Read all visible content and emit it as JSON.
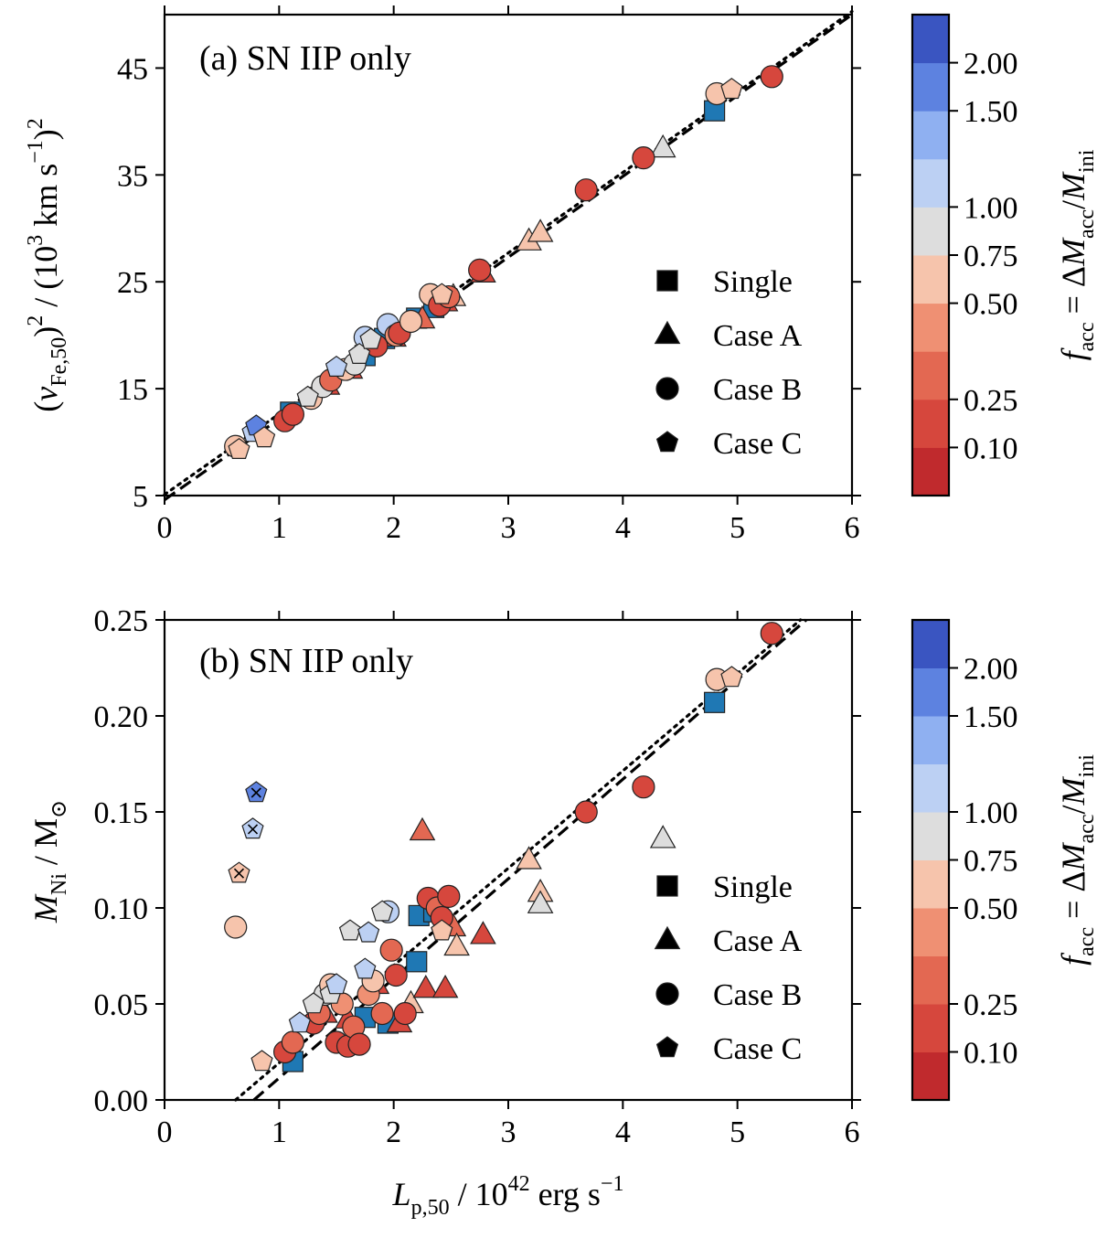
{
  "colors": {
    "single": "#1f78b4",
    "cmap_bins": [
      "#c02a2d",
      "#d6473d",
      "#e36852",
      "#ef9073",
      "#f6c4ac",
      "#dddddd",
      "#bcd0f3",
      "#8fb0f1",
      "#5d82e0",
      "#3a55c1"
    ]
  },
  "chart_data": [
    {
      "type": "scatter",
      "panel": "a",
      "title": "(a) SN IIP only",
      "xlabel": "L_p,50 / 10^42 erg s^-1",
      "ylabel": "(v_Fe,50)^2 / (10^3 km s^-1)^2",
      "xlim": [
        0,
        6
      ],
      "ylim": [
        5,
        50
      ],
      "xticks": [
        0,
        1,
        2,
        3,
        4,
        5,
        6
      ],
      "yticks": [
        5,
        15,
        25,
        35,
        45
      ],
      "fits": [
        {
          "style": "dashed",
          "x": [
            0,
            6
          ],
          "y": [
            4.6,
            50
          ]
        },
        {
          "style": "dotted",
          "x": [
            0,
            6
          ],
          "y": [
            5.1,
            50.3
          ]
        }
      ],
      "series": [
        {
          "name": "Single",
          "marker": "square",
          "points": [
            {
              "x": 1.1,
              "y": 12.8,
              "f": 0
            },
            {
              "x": 1.75,
              "y": 18.1,
              "f": 0
            },
            {
              "x": 1.92,
              "y": 19.7,
              "f": 0
            },
            {
              "x": 2.2,
              "y": 21.6,
              "f": 0
            },
            {
              "x": 2.35,
              "y": 22.6,
              "f": 0
            },
            {
              "x": 4.8,
              "y": 41.0,
              "f": 0
            }
          ]
        },
        {
          "name": "Case A",
          "marker": "triangle",
          "points": [
            {
              "x": 1.42,
              "y": 15.3,
              "f": 0.15
            },
            {
              "x": 1.62,
              "y": 16.8,
              "f": 0.2
            },
            {
              "x": 2.0,
              "y": 19.8,
              "f": 0.2
            },
            {
              "x": 2.25,
              "y": 21.5,
              "f": 0.3
            },
            {
              "x": 2.45,
              "y": 23.1,
              "f": 0.2
            },
            {
              "x": 2.52,
              "y": 23.6,
              "f": 0.6
            },
            {
              "x": 2.78,
              "y": 25.8,
              "f": 0.2
            },
            {
              "x": 3.18,
              "y": 28.8,
              "f": 0.6
            },
            {
              "x": 3.28,
              "y": 29.6,
              "f": 0.55
            },
            {
              "x": 4.35,
              "y": 37.5,
              "f": 0.8
            }
          ]
        },
        {
          "name": "Case B",
          "marker": "circle",
          "points": [
            {
              "x": 0.62,
              "y": 9.6,
              "f": 0.55
            },
            {
              "x": 1.05,
              "y": 12.0,
              "f": 0.2
            },
            {
              "x": 1.12,
              "y": 12.6,
              "f": 0.2
            },
            {
              "x": 1.28,
              "y": 14.1,
              "f": 0.7
            },
            {
              "x": 1.38,
              "y": 15.2,
              "f": 0.8
            },
            {
              "x": 1.45,
              "y": 15.8,
              "f": 0.3
            },
            {
              "x": 1.58,
              "y": 16.8,
              "f": 0.6
            },
            {
              "x": 1.66,
              "y": 17.3,
              "f": 0.9
            },
            {
              "x": 1.75,
              "y": 19.8,
              "f": 1.0
            },
            {
              "x": 1.85,
              "y": 19.0,
              "f": 0.2
            },
            {
              "x": 1.95,
              "y": 21.0,
              "f": 1.0
            },
            {
              "x": 2.02,
              "y": 20.0,
              "f": 0.4
            },
            {
              "x": 2.05,
              "y": 20.2,
              "f": 0.15
            },
            {
              "x": 2.15,
              "y": 21.3,
              "f": 0.5
            },
            {
              "x": 2.32,
              "y": 23.8,
              "f": 0.55
            },
            {
              "x": 2.4,
              "y": 22.8,
              "f": 0.15
            },
            {
              "x": 2.48,
              "y": 23.6,
              "f": 0.3
            },
            {
              "x": 2.75,
              "y": 26.1,
              "f": 0.15
            },
            {
              "x": 3.68,
              "y": 33.6,
              "f": 0.2
            },
            {
              "x": 4.18,
              "y": 36.6,
              "f": 0.15
            },
            {
              "x": 4.82,
              "y": 42.6,
              "f": 0.6
            },
            {
              "x": 5.3,
              "y": 44.2,
              "f": 0.1
            }
          ]
        },
        {
          "name": "Case C",
          "marker": "pentagon",
          "points": [
            {
              "x": 0.65,
              "y": 9.3,
              "f": 0.6
            },
            {
              "x": 0.77,
              "y": 10.9,
              "f": 1.0
            },
            {
              "x": 0.8,
              "y": 11.5,
              "f": 1.6
            },
            {
              "x": 0.87,
              "y": 10.4,
              "f": 0.7
            },
            {
              "x": 1.25,
              "y": 14.2,
              "f": 0.9
            },
            {
              "x": 1.5,
              "y": 17.0,
              "f": 1.0
            },
            {
              "x": 1.7,
              "y": 18.2,
              "f": 0.8
            },
            {
              "x": 1.8,
              "y": 19.6,
              "f": 0.9
            },
            {
              "x": 2.42,
              "y": 23.8,
              "f": 0.7
            },
            {
              "x": 4.95,
              "y": 43.0,
              "f": 0.65
            }
          ]
        }
      ]
    },
    {
      "type": "scatter",
      "panel": "b",
      "title": "(b) SN IIP only",
      "xlabel": "L_p,50 / 10^42 erg s^-1",
      "ylabel": "M_Ni / M_sun",
      "xlim": [
        0,
        6
      ],
      "ylim": [
        0,
        0.25
      ],
      "xticks": [
        0,
        1,
        2,
        3,
        4,
        5,
        6
      ],
      "yticks": [
        0.0,
        0.05,
        0.1,
        0.15,
        0.2,
        0.25
      ],
      "fits": [
        {
          "style": "dashed",
          "x": [
            0.78,
            5.6
          ],
          "y": [
            0.0,
            0.25
          ]
        },
        {
          "style": "dotted",
          "x": [
            0.62,
            5.55
          ],
          "y": [
            0.0,
            0.25
          ]
        }
      ],
      "series": [
        {
          "name": "Single",
          "marker": "square",
          "points": [
            {
              "x": 1.12,
              "y": 0.02,
              "f": 0
            },
            {
              "x": 1.75,
              "y": 0.043,
              "f": 0
            },
            {
              "x": 1.95,
              "y": 0.04,
              "f": 0
            },
            {
              "x": 2.2,
              "y": 0.072,
              "f": 0
            },
            {
              "x": 2.22,
              "y": 0.096,
              "f": 0
            },
            {
              "x": 2.35,
              "y": 0.098,
              "f": 0
            },
            {
              "x": 4.8,
              "y": 0.207,
              "f": 0
            }
          ]
        },
        {
          "name": "Case A",
          "marker": "triangle",
          "points": [
            {
              "x": 1.4,
              "y": 0.045,
              "f": 0.15
            },
            {
              "x": 1.6,
              "y": 0.042,
              "f": 0.2
            },
            {
              "x": 1.85,
              "y": 0.06,
              "f": 0.2
            },
            {
              "x": 2.05,
              "y": 0.04,
              "f": 0.2
            },
            {
              "x": 2.15,
              "y": 0.05,
              "f": 0.5
            },
            {
              "x": 2.25,
              "y": 0.14,
              "f": 0.3
            },
            {
              "x": 2.28,
              "y": 0.058,
              "f": 0.2
            },
            {
              "x": 2.45,
              "y": 0.058,
              "f": 0.2
            },
            {
              "x": 2.52,
              "y": 0.09,
              "f": 0.3
            },
            {
              "x": 2.55,
              "y": 0.08,
              "f": 0.6
            },
            {
              "x": 2.78,
              "y": 0.086,
              "f": 0.2
            },
            {
              "x": 3.18,
              "y": 0.125,
              "f": 0.6
            },
            {
              "x": 3.28,
              "y": 0.108,
              "f": 0.55
            },
            {
              "x": 3.28,
              "y": 0.102,
              "f": 0.8
            },
            {
              "x": 4.35,
              "y": 0.136,
              "f": 0.8
            }
          ]
        },
        {
          "name": "Case B",
          "marker": "circle",
          "points": [
            {
              "x": 0.62,
              "y": 0.09,
              "f": 0.55
            },
            {
              "x": 1.05,
              "y": 0.025,
              "f": 0.2
            },
            {
              "x": 1.12,
              "y": 0.03,
              "f": 0.3
            },
            {
              "x": 1.3,
              "y": 0.04,
              "f": 0.2
            },
            {
              "x": 1.35,
              "y": 0.045,
              "f": 0.3
            },
            {
              "x": 1.4,
              "y": 0.055,
              "f": 0.8
            },
            {
              "x": 1.45,
              "y": 0.06,
              "f": 0.7
            },
            {
              "x": 1.5,
              "y": 0.03,
              "f": 0.2
            },
            {
              "x": 1.55,
              "y": 0.05,
              "f": 0.4
            },
            {
              "x": 1.6,
              "y": 0.028,
              "f": 0.15
            },
            {
              "x": 1.65,
              "y": 0.038,
              "f": 0.25
            },
            {
              "x": 1.7,
              "y": 0.029,
              "f": 0.15
            },
            {
              "x": 1.78,
              "y": 0.055,
              "f": 0.4
            },
            {
              "x": 1.82,
              "y": 0.062,
              "f": 0.5
            },
            {
              "x": 1.9,
              "y": 0.045,
              "f": 0.3
            },
            {
              "x": 1.95,
              "y": 0.098,
              "f": 1.0
            },
            {
              "x": 1.98,
              "y": 0.078,
              "f": 0.3
            },
            {
              "x": 2.02,
              "y": 0.065,
              "f": 0.15
            },
            {
              "x": 2.1,
              "y": 0.045,
              "f": 0.2
            },
            {
              "x": 2.3,
              "y": 0.105,
              "f": 0.2
            },
            {
              "x": 2.38,
              "y": 0.1,
              "f": 0.3
            },
            {
              "x": 2.42,
              "y": 0.095,
              "f": 0.15
            },
            {
              "x": 2.48,
              "y": 0.106,
              "f": 0.2
            },
            {
              "x": 3.68,
              "y": 0.15,
              "f": 0.2
            },
            {
              "x": 4.18,
              "y": 0.163,
              "f": 0.15
            },
            {
              "x": 4.82,
              "y": 0.219,
              "f": 0.6
            },
            {
              "x": 5.3,
              "y": 0.243,
              "f": 0.1
            }
          ]
        },
        {
          "name": "Case C",
          "marker": "pentagon",
          "points": [
            {
              "x": 0.65,
              "y": 0.118,
              "f": 0.6,
              "cross": true
            },
            {
              "x": 0.77,
              "y": 0.141,
              "f": 1.0,
              "cross": true
            },
            {
              "x": 0.8,
              "y": 0.16,
              "f": 1.6,
              "cross": true
            },
            {
              "x": 0.85,
              "y": 0.02,
              "f": 0.7
            },
            {
              "x": 1.18,
              "y": 0.04,
              "f": 1.0
            },
            {
              "x": 1.3,
              "y": 0.05,
              "f": 0.9
            },
            {
              "x": 1.45,
              "y": 0.055,
              "f": 0.8
            },
            {
              "x": 1.5,
              "y": 0.06,
              "f": 1.0
            },
            {
              "x": 1.62,
              "y": 0.088,
              "f": 0.8
            },
            {
              "x": 1.75,
              "y": 0.068,
              "f": 1.0
            },
            {
              "x": 1.78,
              "y": 0.087,
              "f": 1.0
            },
            {
              "x": 1.9,
              "y": 0.098,
              "f": 0.9
            },
            {
              "x": 2.42,
              "y": 0.088,
              "f": 0.7
            },
            {
              "x": 4.95,
              "y": 0.22,
              "f": 0.65
            }
          ]
        }
      ]
    }
  ],
  "legend": {
    "items": [
      {
        "label": "Single",
        "marker": "square"
      },
      {
        "label": "Case A",
        "marker": "triangle"
      },
      {
        "label": "Case B",
        "marker": "circle"
      },
      {
        "label": "Case C",
        "marker": "pentagon"
      }
    ]
  },
  "colorbar": {
    "tick_labels": [
      "0.10",
      "0.25",
      "0.50",
      "0.75",
      "1.00",
      "1.50",
      "2.00"
    ],
    "label": "f_acc = ΔM_acc / M_ini"
  }
}
